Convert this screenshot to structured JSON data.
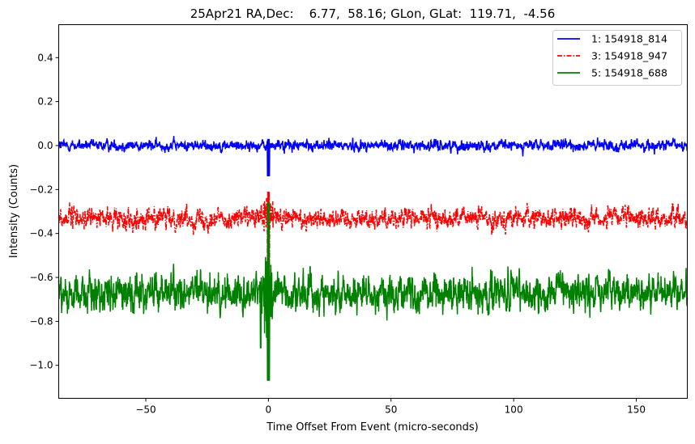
{
  "chart_data": {
    "type": "line",
    "title": "25Apr21 RA,Dec:    6.77,  58.16; GLon, GLat:  119.71,  -4.56",
    "xlabel": "Time Offset From Event (micro-seconds)",
    "ylabel": "Intensity (Counts)",
    "xlim": [
      -85.5,
      170.8
    ],
    "ylim": [
      -1.15,
      0.55
    ],
    "xticks": [
      -50,
      0,
      50,
      100,
      150
    ],
    "xtick_labels": [
      "−50",
      "0",
      "50",
      "100",
      "150"
    ],
    "yticks": [
      0.4,
      0.2,
      0.0,
      -0.2,
      -0.4,
      -0.6,
      -0.8,
      -1.0
    ],
    "ytick_labels": [
      "0.4",
      "0.2",
      "0.0",
      "−0.2",
      "−0.4",
      "−0.6",
      "−0.8",
      "−1.0"
    ],
    "grid": false,
    "legend_position": "top-right",
    "series": [
      {
        "name": "1: 154918_814",
        "color": "#0000ff",
        "style": "solid",
        "baseline": 0.0,
        "noise_sd": 0.013,
        "event_min": -0.14,
        "event_max": 0.03
      },
      {
        "name": "3: 154918_947",
        "color": "#ff0000",
        "style": "dashdot",
        "baseline": -0.33,
        "noise_sd": 0.025,
        "event_min": -0.6,
        "event_max": -0.21
      },
      {
        "name": "5: 154918_688",
        "color": "#008000",
        "style": "solid",
        "baseline": -0.67,
        "noise_sd": 0.045,
        "event_min": -1.07,
        "event_max": -0.26
      }
    ]
  }
}
